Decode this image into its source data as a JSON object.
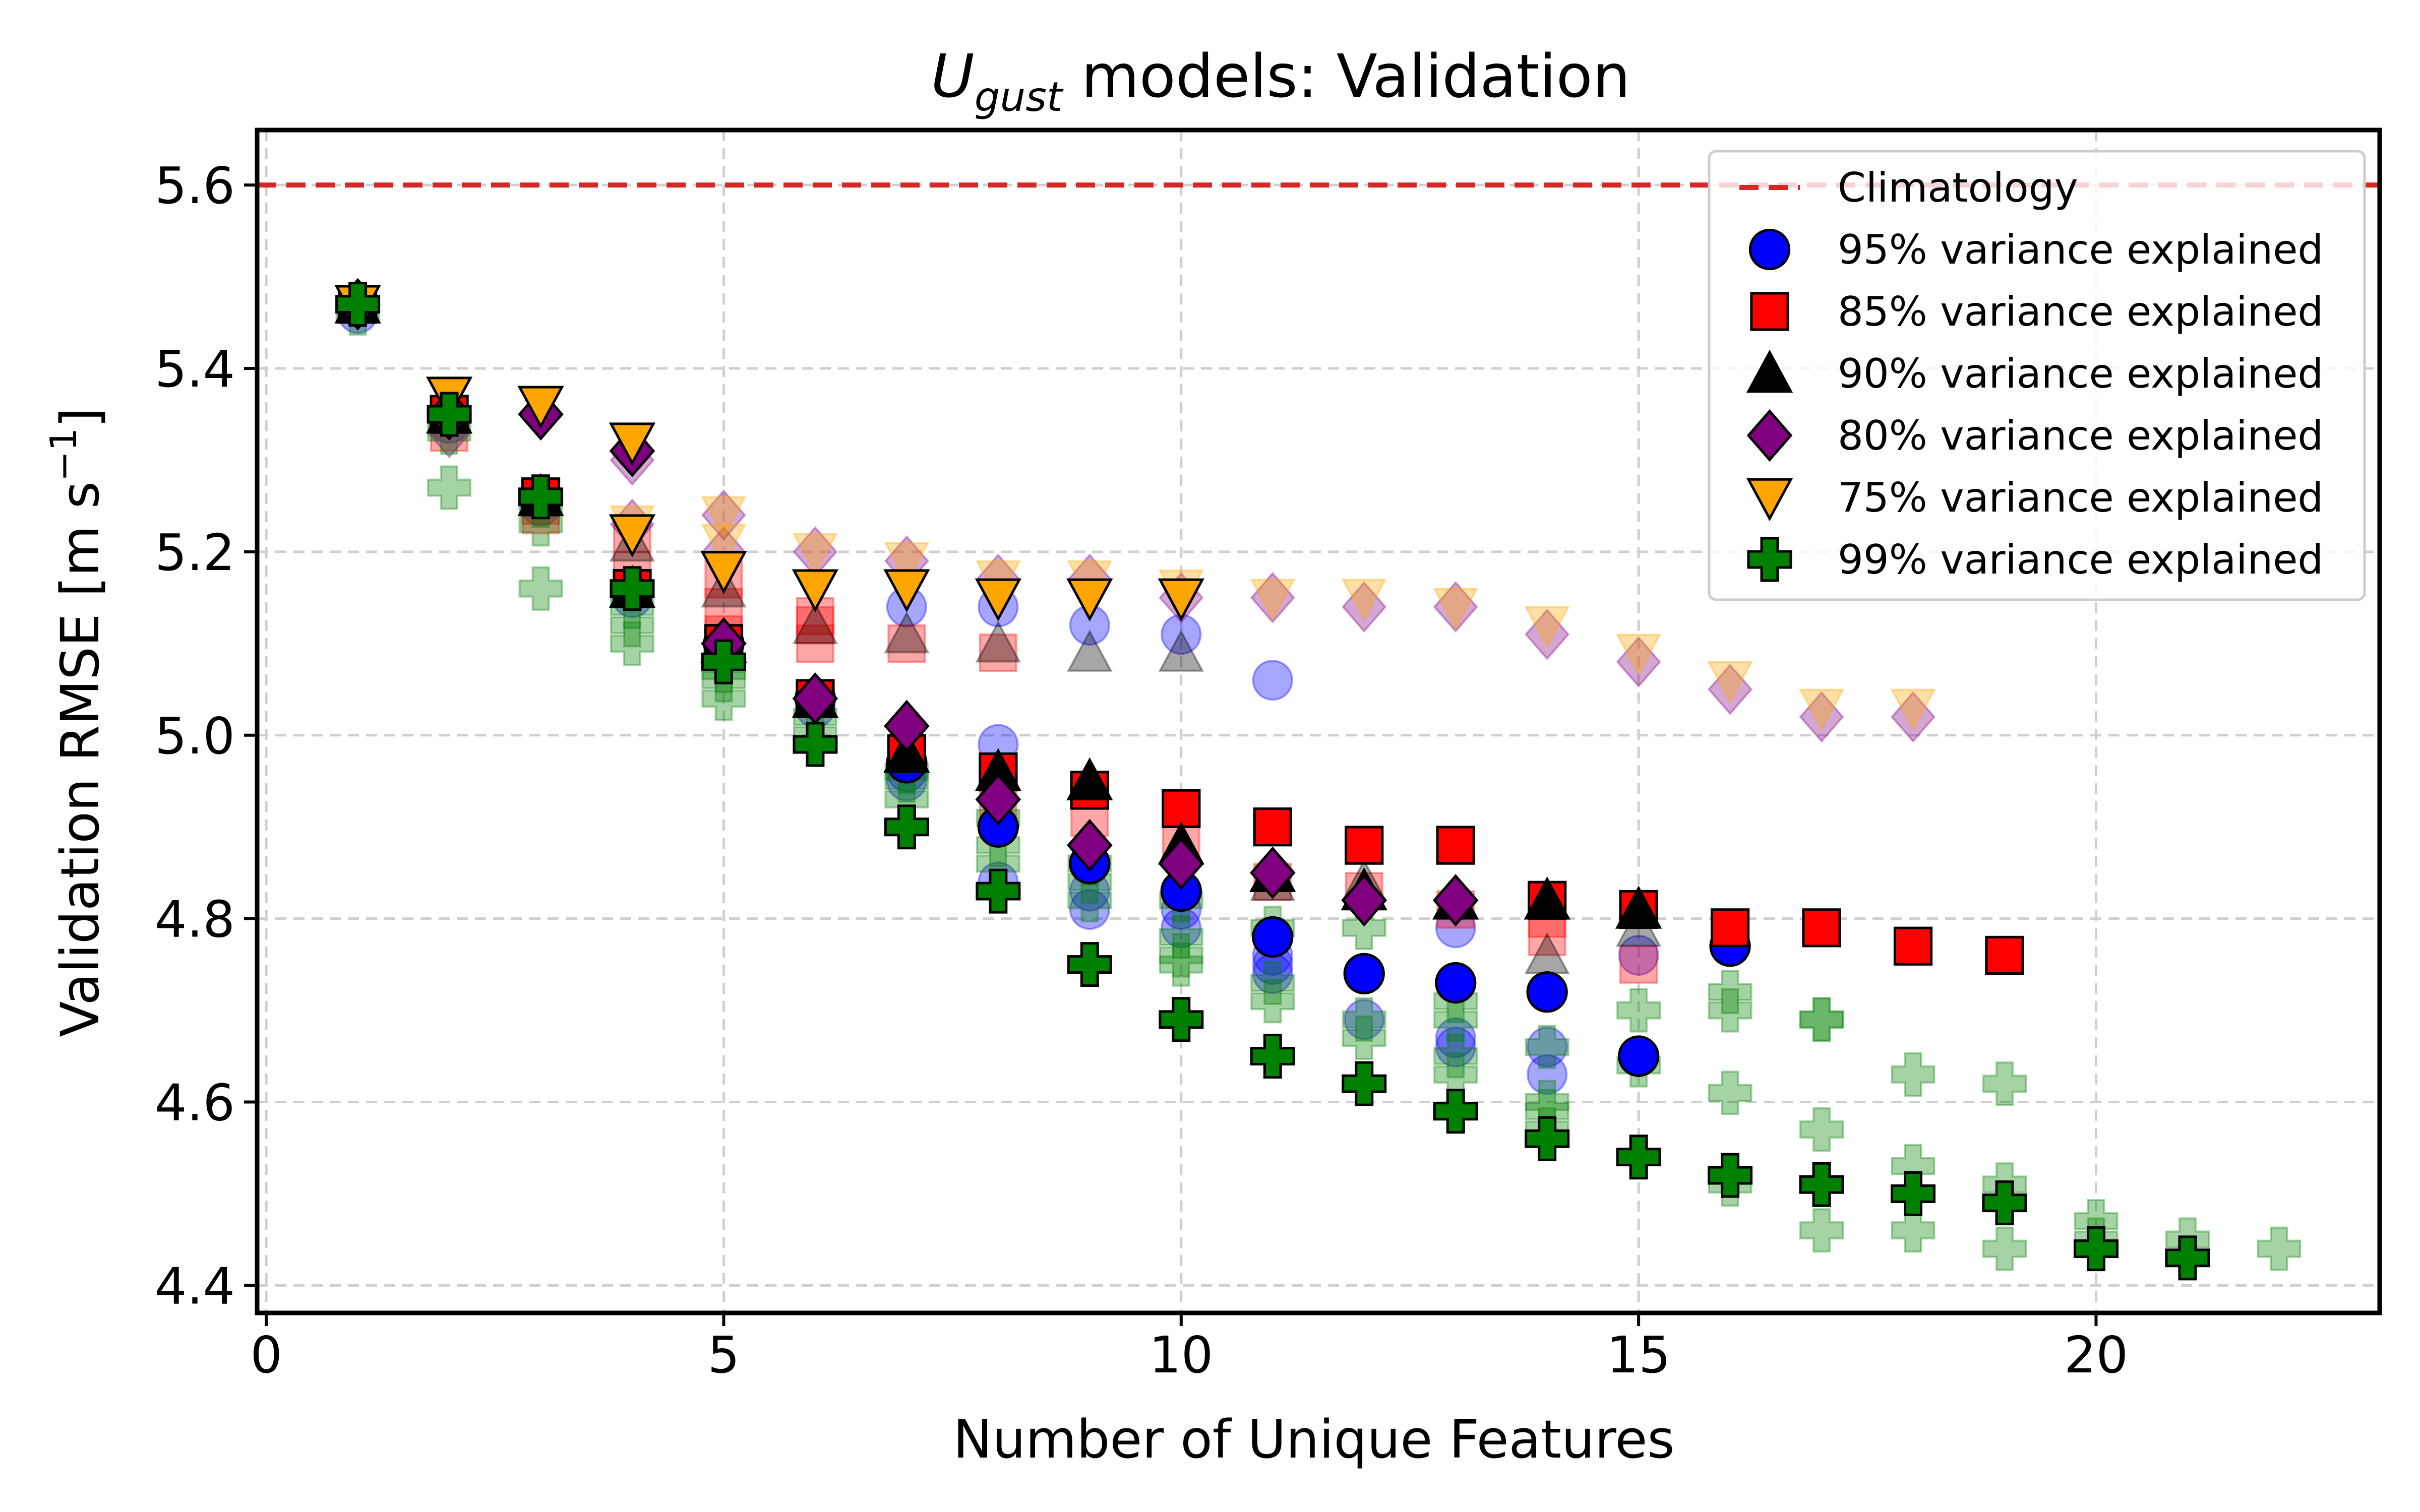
{
  "chart_data": {
    "type": "scatter",
    "title_main": "U",
    "title_sub": "gust",
    "title_rest": " models: Validation",
    "xlabel": "Number of Unique Features",
    "ylabel_main": "Validation RMSE [m s",
    "ylabel_sup": "−1",
    "ylabel_end": "]",
    "xlim": [
      -0.1,
      23.1
    ],
    "ylim": [
      4.37,
      5.66
    ],
    "xticks": [
      0,
      5,
      10,
      15,
      20
    ],
    "yticks": [
      4.4,
      4.6,
      4.8,
      5.0,
      5.2,
      5.4,
      5.6
    ],
    "grid": true,
    "legend_position": "top-right",
    "climatology": {
      "name": "Climatology",
      "y": 5.6,
      "color": "#d62728"
    },
    "series": [
      {
        "name": "95% variance explained",
        "marker": "circle",
        "color": "#0000ff",
        "best": [
          [
            1,
            5.47
          ],
          [
            2,
            5.35
          ],
          [
            3,
            5.26
          ],
          [
            4,
            5.16
          ],
          [
            5,
            5.1
          ],
          [
            6,
            5.04
          ],
          [
            7,
            4.97
          ],
          [
            8,
            4.9
          ],
          [
            9,
            4.86
          ],
          [
            10,
            4.83
          ],
          [
            11,
            4.78
          ],
          [
            12,
            4.74
          ],
          [
            13,
            4.73
          ],
          [
            14,
            4.72
          ],
          [
            15,
            4.65
          ],
          [
            16,
            4.77
          ]
        ],
        "others": [
          [
            1,
            5.46
          ],
          [
            2,
            5.34
          ],
          [
            3,
            5.25
          ],
          [
            4,
            5.15
          ],
          [
            5,
            5.09
          ],
          [
            6,
            5.03
          ],
          [
            7,
            4.96
          ],
          [
            7,
            4.95
          ],
          [
            8,
            4.99
          ],
          [
            8,
            4.84
          ],
          [
            9,
            4.81
          ],
          [
            9,
            4.83
          ],
          [
            10,
            4.81
          ],
          [
            10,
            4.79
          ],
          [
            11,
            4.76
          ],
          [
            11,
            4.75
          ],
          [
            11,
            4.74
          ],
          [
            12,
            4.74
          ],
          [
            12,
            4.69
          ],
          [
            13,
            4.67
          ],
          [
            13,
            4.66
          ],
          [
            13,
            4.79
          ],
          [
            14,
            4.66
          ],
          [
            14,
            4.63
          ],
          [
            7,
            5.14
          ],
          [
            8,
            5.14
          ],
          [
            9,
            5.12
          ],
          [
            10,
            5.11
          ],
          [
            11,
            5.06
          ],
          [
            15,
            4.76
          ]
        ]
      },
      {
        "name": "85% variance explained",
        "marker": "square",
        "color": "#ff0000",
        "best": [
          [
            1,
            5.47
          ],
          [
            2,
            5.35
          ],
          [
            3,
            5.26
          ],
          [
            4,
            5.16
          ],
          [
            5,
            5.1
          ],
          [
            6,
            5.04
          ],
          [
            7,
            4.98
          ],
          [
            8,
            4.96
          ],
          [
            9,
            4.94
          ],
          [
            10,
            4.92
          ],
          [
            11,
            4.9
          ],
          [
            12,
            4.88
          ],
          [
            13,
            4.88
          ],
          [
            14,
            4.82
          ],
          [
            15,
            4.81
          ],
          [
            16,
            4.79
          ],
          [
            17,
            4.79
          ],
          [
            18,
            4.77
          ],
          [
            19,
            4.76
          ]
        ],
        "others": [
          [
            2,
            5.33
          ],
          [
            3,
            5.25
          ],
          [
            4,
            5.22
          ],
          [
            4,
            5.18
          ],
          [
            5,
            5.14
          ],
          [
            5,
            5.11
          ],
          [
            6,
            5.13
          ],
          [
            6,
            5.1
          ],
          [
            7,
            5.1
          ],
          [
            8,
            5.09
          ],
          [
            8,
            4.93
          ],
          [
            9,
            4.91
          ],
          [
            10,
            4.88
          ],
          [
            11,
            4.84
          ],
          [
            12,
            4.83
          ],
          [
            13,
            4.81
          ],
          [
            14,
            4.8
          ],
          [
            14,
            4.78
          ],
          [
            15,
            4.75
          ],
          [
            3,
            5.24
          ],
          [
            5,
            5.17
          ],
          [
            6,
            5.12
          ]
        ]
      },
      {
        "name": "90% variance explained",
        "marker": "triangle-up",
        "color": "#000000",
        "best": [
          [
            1,
            5.47
          ],
          [
            2,
            5.35
          ],
          [
            3,
            5.26
          ],
          [
            4,
            5.16
          ],
          [
            5,
            5.1
          ],
          [
            6,
            5.04
          ],
          [
            7,
            4.98
          ],
          [
            8,
            4.96
          ],
          [
            9,
            4.95
          ],
          [
            10,
            4.88
          ],
          [
            11,
            4.85
          ],
          [
            12,
            4.83
          ],
          [
            13,
            4.82
          ],
          [
            14,
            4.82
          ],
          [
            15,
            4.81
          ]
        ],
        "others": [
          [
            4,
            5.21
          ],
          [
            5,
            5.16
          ],
          [
            6,
            5.12
          ],
          [
            7,
            5.11
          ],
          [
            8,
            5.1
          ],
          [
            9,
            5.09
          ],
          [
            10,
            5.09
          ],
          [
            11,
            4.84
          ],
          [
            12,
            4.84
          ],
          [
            14,
            4.76
          ],
          [
            15,
            4.79
          ]
        ]
      },
      {
        "name": "80% variance explained",
        "marker": "diamond",
        "color": "#800080",
        "best": [
          [
            1,
            5.47
          ],
          [
            2,
            5.35
          ],
          [
            3,
            5.35
          ],
          [
            4,
            5.31
          ],
          [
            5,
            5.1
          ],
          [
            6,
            5.04
          ],
          [
            7,
            5.01
          ],
          [
            8,
            4.93
          ],
          [
            9,
            4.88
          ],
          [
            10,
            4.86
          ],
          [
            11,
            4.85
          ],
          [
            12,
            4.82
          ],
          [
            13,
            4.82
          ]
        ],
        "others": [
          [
            2,
            5.33
          ],
          [
            4,
            5.3
          ],
          [
            4,
            5.23
          ],
          [
            5,
            5.24
          ],
          [
            5,
            5.2
          ],
          [
            6,
            5.2
          ],
          [
            7,
            5.19
          ],
          [
            8,
            5.17
          ],
          [
            9,
            5.17
          ],
          [
            10,
            5.15
          ],
          [
            11,
            5.15
          ],
          [
            12,
            5.14
          ],
          [
            13,
            5.14
          ],
          [
            14,
            5.11
          ],
          [
            15,
            5.08
          ],
          [
            16,
            5.05
          ],
          [
            17,
            5.02
          ],
          [
            18,
            5.02
          ]
        ]
      },
      {
        "name": "75% variance explained",
        "marker": "triangle-down",
        "color": "#ffa500",
        "best": [
          [
            1,
            5.47
          ],
          [
            2,
            5.37
          ],
          [
            3,
            5.36
          ],
          [
            4,
            5.32
          ],
          [
            4,
            5.22
          ],
          [
            5,
            5.18
          ],
          [
            6,
            5.16
          ],
          [
            7,
            5.16
          ],
          [
            8,
            5.15
          ],
          [
            9,
            5.15
          ],
          [
            10,
            5.15
          ]
        ],
        "others": [
          [
            4,
            5.23
          ],
          [
            5,
            5.24
          ],
          [
            5,
            5.21
          ],
          [
            6,
            5.2
          ],
          [
            7,
            5.19
          ],
          [
            8,
            5.17
          ],
          [
            9,
            5.17
          ],
          [
            10,
            5.16
          ],
          [
            11,
            5.15
          ],
          [
            12,
            5.15
          ],
          [
            13,
            5.14
          ],
          [
            14,
            5.12
          ],
          [
            15,
            5.09
          ],
          [
            16,
            5.06
          ],
          [
            17,
            5.03
          ],
          [
            18,
            5.03
          ]
        ]
      },
      {
        "name": "99% variance explained",
        "marker": "plus",
        "color": "#008000",
        "best": [
          [
            1,
            5.47
          ],
          [
            2,
            5.35
          ],
          [
            3,
            5.26
          ],
          [
            4,
            5.16
          ],
          [
            5,
            5.08
          ],
          [
            6,
            4.99
          ],
          [
            7,
            4.9
          ],
          [
            8,
            4.83
          ],
          [
            9,
            4.75
          ],
          [
            10,
            4.69
          ],
          [
            11,
            4.65
          ],
          [
            12,
            4.62
          ],
          [
            13,
            4.59
          ],
          [
            14,
            4.56
          ],
          [
            15,
            4.54
          ],
          [
            16,
            4.52
          ],
          [
            17,
            4.51
          ],
          [
            18,
            4.5
          ],
          [
            19,
            4.49
          ],
          [
            20,
            4.44
          ],
          [
            21,
            4.43
          ]
        ],
        "others": [
          [
            1,
            5.46
          ],
          [
            2,
            5.27
          ],
          [
            2,
            5.33
          ],
          [
            3,
            5.16
          ],
          [
            3,
            5.23
          ],
          [
            3,
            5.25
          ],
          [
            4,
            5.1
          ],
          [
            4,
            5.14
          ],
          [
            4,
            5.12
          ],
          [
            5,
            5.04
          ],
          [
            5,
            5.06
          ],
          [
            5,
            5.07
          ],
          [
            6,
            5.02
          ],
          [
            6,
            5.0
          ],
          [
            7,
            4.96
          ],
          [
            7,
            4.93
          ],
          [
            7,
            4.95
          ],
          [
            8,
            4.91
          ],
          [
            8,
            4.88
          ],
          [
            8,
            4.86
          ],
          [
            9,
            4.82
          ],
          [
            9,
            4.84
          ],
          [
            9,
            4.86
          ],
          [
            10,
            4.82
          ],
          [
            10,
            4.78
          ],
          [
            10,
            4.75
          ],
          [
            10,
            4.76
          ],
          [
            11,
            4.79
          ],
          [
            11,
            4.71
          ],
          [
            11,
            4.73
          ],
          [
            12,
            4.79
          ],
          [
            12,
            4.69
          ],
          [
            12,
            4.67
          ],
          [
            12,
            4.62
          ],
          [
            13,
            4.71
          ],
          [
            13,
            4.65
          ],
          [
            13,
            4.63
          ],
          [
            13,
            4.69
          ],
          [
            14,
            4.66
          ],
          [
            14,
            4.59
          ],
          [
            14,
            4.57
          ],
          [
            14,
            4.6
          ],
          [
            15,
            4.7
          ],
          [
            15,
            4.64
          ],
          [
            16,
            4.72
          ],
          [
            16,
            4.7
          ],
          [
            16,
            4.61
          ],
          [
            16,
            4.51
          ],
          [
            17,
            4.69
          ],
          [
            17,
            4.69
          ],
          [
            17,
            4.57
          ],
          [
            17,
            4.46
          ],
          [
            18,
            4.63
          ],
          [
            18,
            4.53
          ],
          [
            18,
            4.46
          ],
          [
            19,
            4.62
          ],
          [
            19,
            4.51
          ],
          [
            19,
            4.44
          ],
          [
            20,
            4.47
          ],
          [
            20,
            4.45
          ],
          [
            21,
            4.45
          ],
          [
            22,
            4.44
          ]
        ]
      }
    ]
  }
}
